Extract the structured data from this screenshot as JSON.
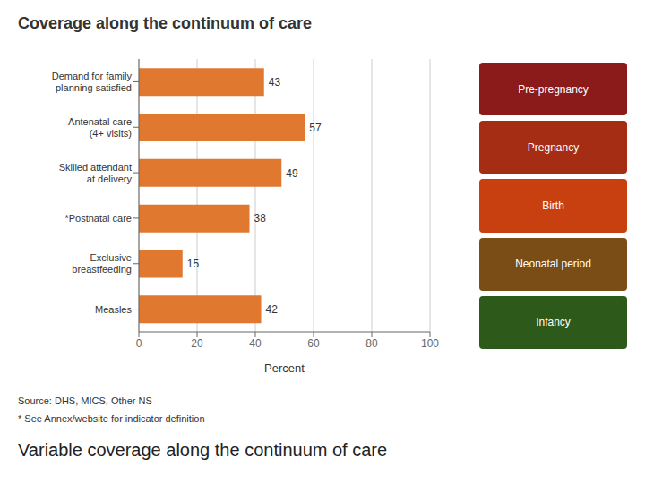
{
  "chart_data": {
    "type": "bar",
    "orientation": "horizontal",
    "title": "Coverage along the continuum of care",
    "subtitle": "Variable coverage along the continuum of care",
    "categories": [
      "Demand for family\nplanning satisfied",
      "Antenatal care\n(4+ visits)",
      "Skilled attendant\nat delivery",
      "*Postnatal care",
      "Exclusive\nbreastfeeding",
      "Measles"
    ],
    "values": [
      43,
      57,
      49,
      38,
      15,
      42
    ],
    "color": "#E07830",
    "xlim": [
      0,
      100
    ],
    "xticks": [
      0,
      20,
      40,
      60,
      80,
      100
    ],
    "xlabel": "Percent",
    "grid": true,
    "data_labels": true,
    "annotations": [
      "Source: DHS, MICS, Other NS",
      "* See Annex/website for indicator definition",
      "Pre-pregnancy",
      "Pregnancy",
      "Birth",
      "Neonatal period",
      "Infancy"
    ]
  }
}
